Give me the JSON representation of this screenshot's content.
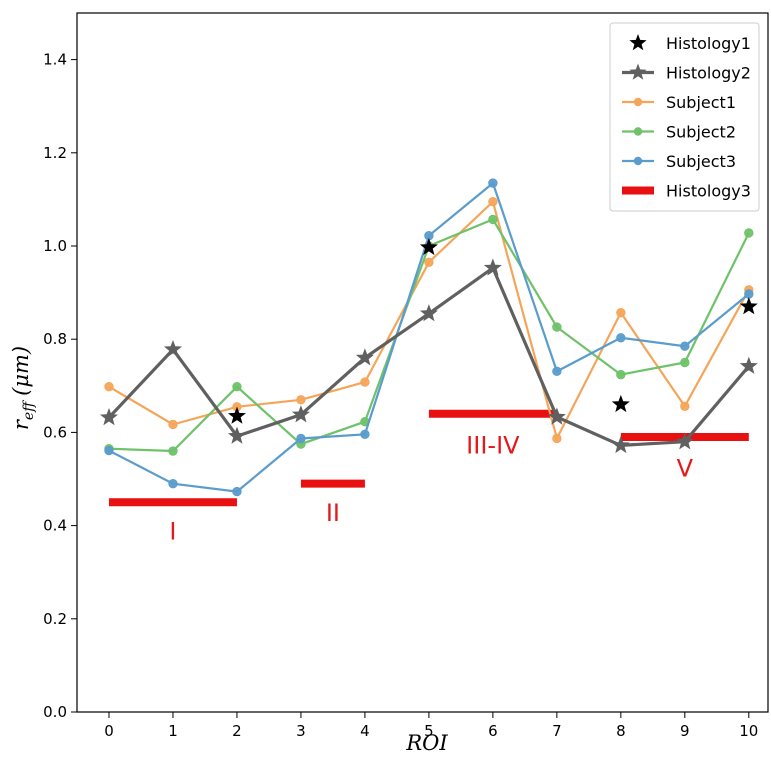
{
  "chart_data": {
    "type": "line",
    "xlabel": "ROI",
    "ylabel_main": "r",
    "ylabel_sub": "eff",
    "ylabel_unit": "(μm)",
    "xlim": [
      -0.5,
      10.3
    ],
    "ylim": [
      0.0,
      1.5
    ],
    "x_ticks": [
      0,
      1,
      2,
      3,
      4,
      5,
      6,
      7,
      8,
      9,
      10
    ],
    "y_ticks": [
      0.0,
      0.2,
      0.4,
      0.6,
      0.8,
      1.0,
      1.2,
      1.4
    ],
    "y_tick_labels": [
      "0.0",
      "0.2",
      "0.4",
      "0.6",
      "0.8",
      "1.0",
      "1.2",
      "1.4"
    ],
    "grid": false,
    "legend_position": "top-right",
    "series": [
      {
        "name": "Histology1",
        "style": "star-markers",
        "color": "#000000",
        "points": [
          [
            2,
            0.635
          ],
          [
            5,
            0.997
          ],
          [
            8,
            0.66
          ],
          [
            10,
            0.87
          ]
        ]
      },
      {
        "name": "Histology2",
        "style": "line-star",
        "color": "#606060",
        "x": [
          0,
          1,
          2,
          3,
          4,
          5,
          6,
          7,
          8,
          9,
          10
        ],
        "values": [
          0.632,
          0.778,
          0.592,
          0.638,
          0.76,
          0.855,
          0.953,
          0.633,
          0.572,
          0.58,
          0.742
        ]
      },
      {
        "name": "Subject1",
        "style": "line-dot",
        "color": "#f5a55a",
        "x": [
          0,
          1,
          2,
          3,
          4,
          5,
          6,
          7,
          8,
          9,
          10
        ],
        "values": [
          0.698,
          0.617,
          0.655,
          0.67,
          0.708,
          0.965,
          1.095,
          0.587,
          0.857,
          0.656,
          0.906
        ]
      },
      {
        "name": "Subject2",
        "style": "line-dot",
        "color": "#6fc26a",
        "x": [
          0,
          1,
          2,
          3,
          4,
          5,
          6,
          7,
          8,
          9,
          10
        ],
        "values": [
          0.565,
          0.56,
          0.698,
          0.575,
          0.623,
          1.0,
          1.057,
          0.826,
          0.724,
          0.75,
          1.028
        ]
      },
      {
        "name": "Subject3",
        "style": "line-dot",
        "color": "#5a9ccc",
        "x": [
          0,
          1,
          2,
          3,
          4,
          5,
          6,
          7,
          8,
          9,
          10
        ],
        "values": [
          0.561,
          0.49,
          0.473,
          0.587,
          0.596,
          1.022,
          1.135,
          0.731,
          0.803,
          0.785,
          0.897
        ]
      },
      {
        "name": "Histology3",
        "style": "segments",
        "color": "#e81010",
        "segments": [
          {
            "x": [
              0,
              2
            ],
            "y": 0.45,
            "label": "I"
          },
          {
            "x": [
              3,
              4
            ],
            "y": 0.49,
            "label": "II"
          },
          {
            "x": [
              5,
              7
            ],
            "y": 0.64,
            "label": "III-IV"
          },
          {
            "x": [
              8,
              10
            ],
            "y": 0.59,
            "label": "V"
          }
        ]
      }
    ],
    "region_labels": [
      {
        "text": "I",
        "x": 1.0,
        "y": 0.37
      },
      {
        "text": "II",
        "x": 3.5,
        "y": 0.41
      },
      {
        "text": "III-IV",
        "x": 6.0,
        "y": 0.555
      },
      {
        "text": "V",
        "x": 9.0,
        "y": 0.505
      }
    ]
  }
}
